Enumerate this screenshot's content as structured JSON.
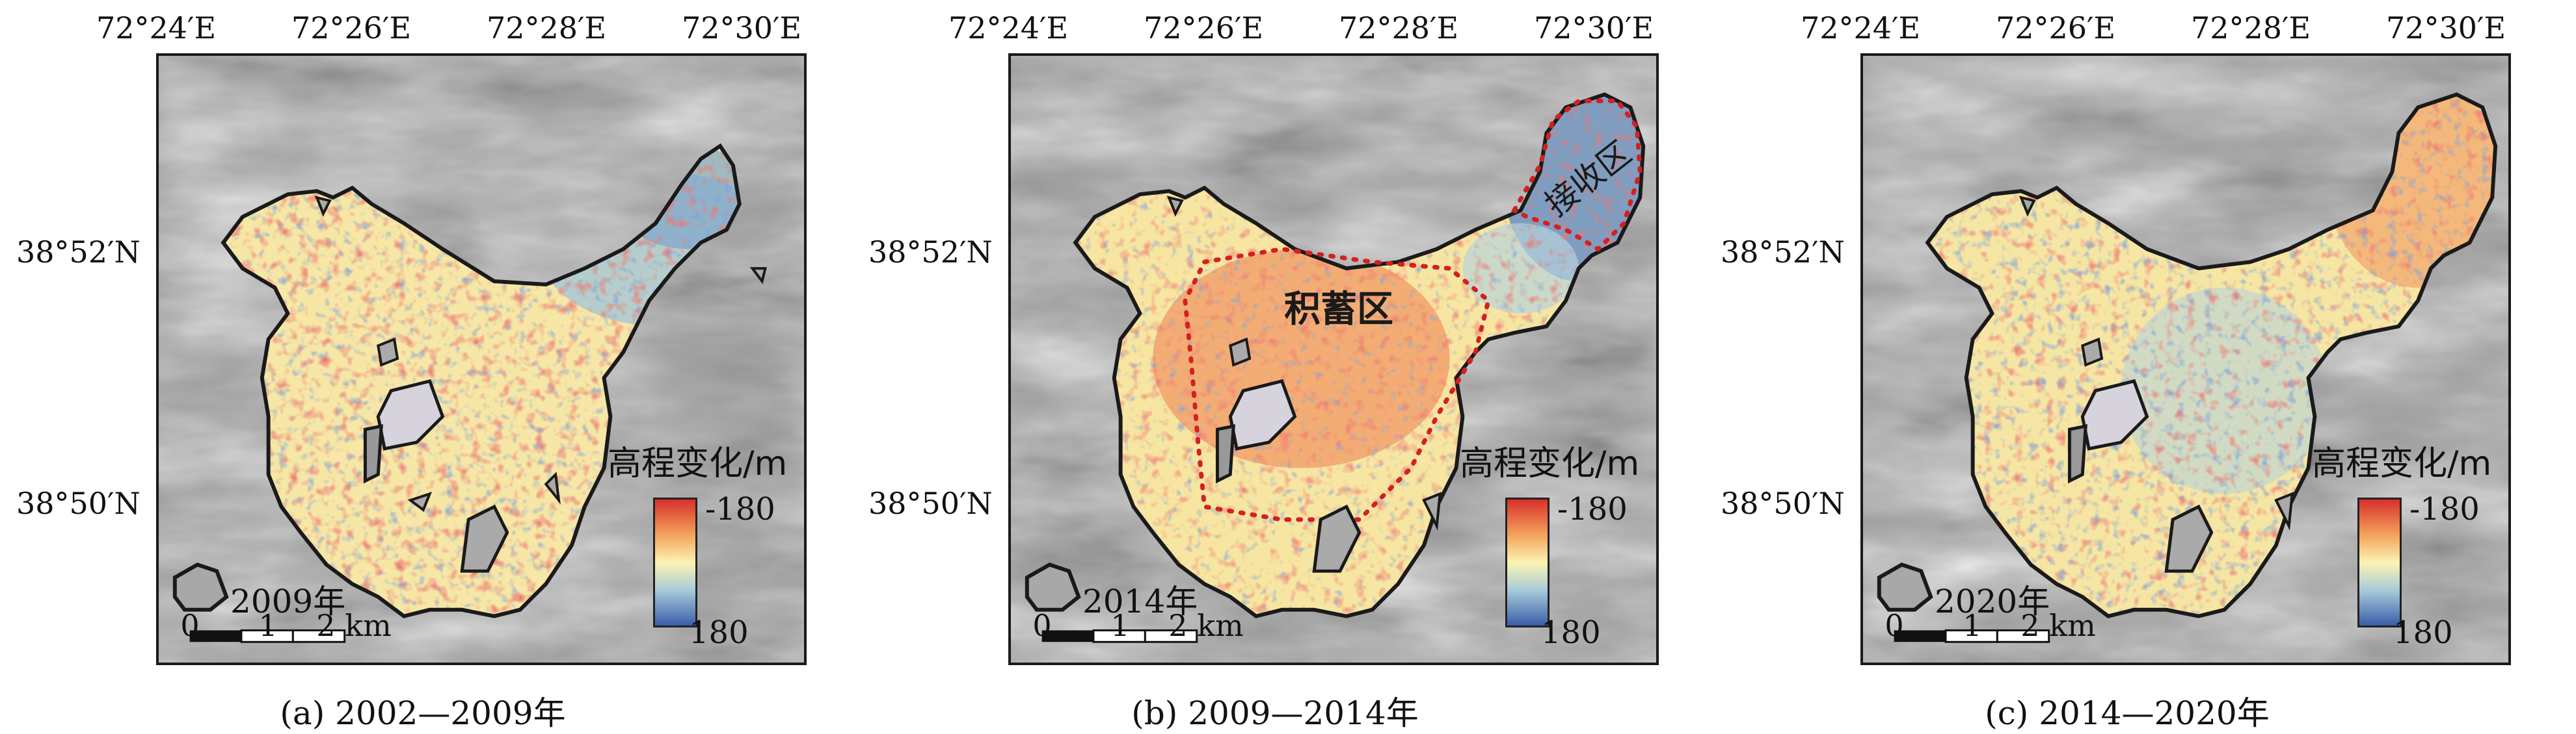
{
  "panels": [
    {
      "lon_ticks": [
        "72°24′E",
        "72°26′E",
        "72°28′E",
        "72°30′E"
      ],
      "lat_ticks": [
        "38°52′N",
        "38°50′N"
      ],
      "legend": {
        "title": "高程变化/m",
        "max_label": "-180",
        "min_label": "180"
      },
      "year_label": "2009年",
      "scale_bar": {
        "labels": [
          "0",
          "1",
          "2 km"
        ]
      },
      "caption": "(a) 2002—2009年",
      "zones": []
    },
    {
      "lon_ticks": [
        "72°24′E",
        "72°26′E",
        "72°28′E",
        "72°30′E"
      ],
      "lat_ticks": [
        "38°52′N",
        "38°50′N"
      ],
      "legend": {
        "title": "高程变化/m",
        "max_label": "-180",
        "min_label": "180"
      },
      "year_label": "2014年",
      "scale_bar": {
        "labels": [
          "0",
          "1",
          "2 km"
        ]
      },
      "caption": "(b) 2009—2014年",
      "zones": [
        {
          "label": "积蓄区"
        },
        {
          "label": "接收区"
        }
      ]
    },
    {
      "lon_ticks": [
        "72°24′E",
        "72°26′E",
        "72°28′E",
        "72°30′E"
      ],
      "lat_ticks": [
        "38°52′N",
        "38°50′N"
      ],
      "legend": {
        "title": "高程变化/m",
        "max_label": "-180",
        "min_label": "180"
      },
      "year_label": "2020年",
      "scale_bar": {
        "labels": [
          "0",
          "1",
          "2 km"
        ]
      },
      "caption": "(c) 2014—2020年",
      "zones": []
    }
  ],
  "colors": {
    "high_loss": "#d7302b",
    "neutral": "#fbf4b3",
    "high_gain": "#3a5ea8",
    "outline": "#1a1a1a",
    "zone_outline": "#d42020"
  }
}
